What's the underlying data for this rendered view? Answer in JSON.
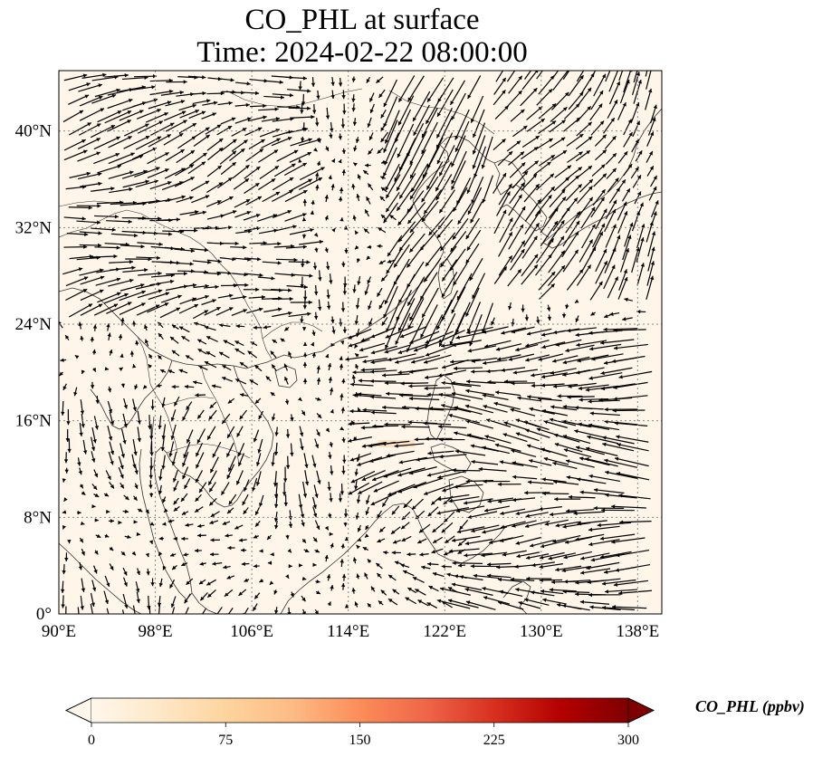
{
  "title": {
    "line1": "CO_PHL at surface",
    "line2": "Time: 2024-02-22 08:00:00"
  },
  "map": {
    "lon_range": [
      90,
      140
    ],
    "lat_range": [
      0,
      45
    ],
    "x_ticks": [
      "90°E",
      "98°E",
      "106°E",
      "114°E",
      "122°E",
      "130°E",
      "138°E"
    ],
    "y_ticks": [
      "0°",
      "8°N",
      "16°N",
      "24°N",
      "32°N",
      "40°N"
    ],
    "gridlines": "dotted",
    "background_color": "#fff5e8",
    "coastline_color": "#333333",
    "vector_color": "#000000",
    "highlight_patch": {
      "lon": [
        116.5,
        119.5
      ],
      "lat": [
        13.8,
        14.4
      ],
      "color": "#fde3c3"
    }
  },
  "colorbar": {
    "label": "CO_PHL (ppbv)",
    "colormap": "OrRd",
    "range": [
      0,
      300
    ],
    "ticks": [
      "0",
      "75",
      "150",
      "225",
      "300"
    ],
    "colors": [
      "#fff7ec",
      "#fee8c8",
      "#fdd49e",
      "#fdbb84",
      "#fc8d59",
      "#ef6548",
      "#d7301f",
      "#b30000",
      "#7f0000"
    ],
    "extend": "both"
  }
}
